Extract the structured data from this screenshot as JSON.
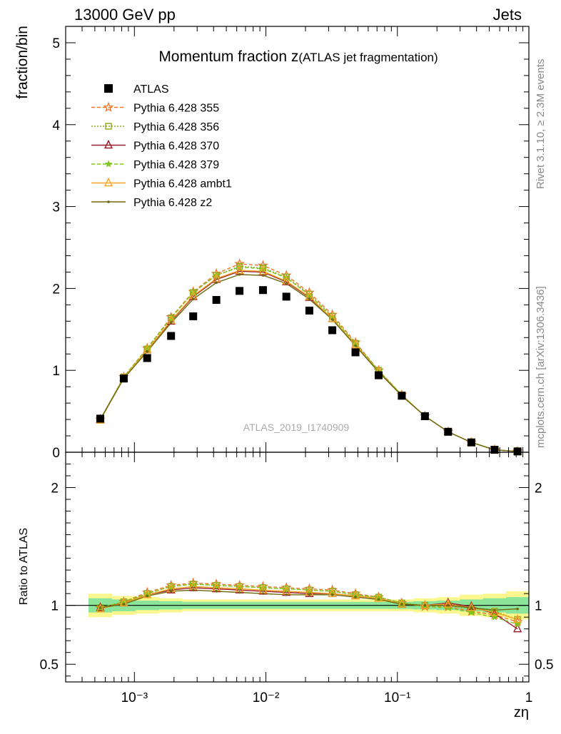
{
  "header": {
    "beam": "13000 GeV pp",
    "category": "Jets",
    "rivet": "Rivet 3.1.10, ≥ 2.3M events",
    "site": "mcplots.cern.ch [arXiv:1306.3436]",
    "analysis": "ATLAS_2019_I1740909"
  },
  "chart_data": [
    {
      "panel": "main",
      "type": "scatter",
      "title_main": "Momentum fraction z",
      "title_sub": "(ATLAS jet fragmentation)",
      "ylabel": "fraction/bin",
      "xscale": "log",
      "xlim": [
        0.0003,
        1
      ],
      "ylim": [
        0,
        5.2
      ],
      "y_ticks": [
        "0",
        "1",
        "2",
        "3",
        "4",
        "5"
      ],
      "legend_placement": "top-left",
      "x": [
        0.00055,
        0.00083,
        0.00125,
        0.0019,
        0.0028,
        0.0042,
        0.0063,
        0.0095,
        0.0143,
        0.0214,
        0.032,
        0.048,
        0.072,
        0.108,
        0.162,
        0.243,
        0.365,
        0.548,
        0.82
      ],
      "series": [
        {
          "name": "ATLAS",
          "color": "#000000",
          "marker": "square",
          "line": "none",
          "values": [
            0.41,
            0.9,
            1.15,
            1.42,
            1.66,
            1.86,
            1.97,
            1.98,
            1.9,
            1.73,
            1.49,
            1.22,
            0.94,
            0.69,
            0.44,
            0.25,
            0.12,
            0.03,
            0.01
          ]
        },
        {
          "name": "Pythia 6.428 355",
          "color": "#f4772e",
          "marker": "star-open",
          "line": "dashed",
          "values": [
            0.4,
            0.92,
            1.27,
            1.65,
            1.96,
            2.18,
            2.3,
            2.28,
            2.16,
            1.95,
            1.68,
            1.34,
            1.0,
            0.7,
            0.44,
            0.25,
            0.12,
            0.03,
            0.01
          ]
        },
        {
          "name": "Pythia 6.428 356",
          "color": "#8aac1a",
          "marker": "square-open",
          "line": "dotted",
          "values": [
            0.4,
            0.92,
            1.26,
            1.64,
            1.95,
            2.16,
            2.27,
            2.25,
            2.14,
            1.93,
            1.66,
            1.33,
            1.0,
            0.7,
            0.44,
            0.25,
            0.12,
            0.03,
            0.01
          ]
        },
        {
          "name": "Pythia 6.428 370",
          "color": "#9b1b2e",
          "marker": "triangle-open",
          "line": "solid",
          "values": [
            0.4,
            0.91,
            1.25,
            1.6,
            1.9,
            2.11,
            2.21,
            2.2,
            2.08,
            1.89,
            1.63,
            1.31,
            0.98,
            0.69,
            0.44,
            0.25,
            0.12,
            0.03,
            0.01
          ]
        },
        {
          "name": "Pythia 6.428 379",
          "color": "#7fc41d",
          "marker": "star",
          "line": "dashed",
          "values": [
            0.4,
            0.92,
            1.27,
            1.64,
            1.95,
            2.16,
            2.26,
            2.24,
            2.13,
            1.92,
            1.65,
            1.32,
            0.99,
            0.7,
            0.44,
            0.25,
            0.12,
            0.03,
            0.01
          ]
        },
        {
          "name": "Pythia 6.428 ambt1",
          "color": "#f5a623",
          "marker": "triangle-open",
          "line": "solid",
          "values": [
            0.39,
            0.91,
            1.25,
            1.61,
            1.91,
            2.12,
            2.22,
            2.21,
            2.09,
            1.9,
            1.63,
            1.31,
            0.98,
            0.69,
            0.44,
            0.25,
            0.12,
            0.03,
            0.01
          ]
        },
        {
          "name": "Pythia 6.428 z2",
          "color": "#6b6b10",
          "marker": "dot",
          "line": "solid",
          "values": [
            0.4,
            0.9,
            1.23,
            1.58,
            1.87,
            2.07,
            2.17,
            2.16,
            2.06,
            1.87,
            1.62,
            1.3,
            0.98,
            0.69,
            0.44,
            0.25,
            0.12,
            0.03,
            0.01
          ]
        }
      ]
    },
    {
      "panel": "ratio",
      "type": "line",
      "ylabel": "Ratio to ATLAS",
      "xlabel": "zη",
      "xscale": "log",
      "xlim": [
        0.0003,
        1
      ],
      "ylim": [
        0.35,
        2.3
      ],
      "y_ticks": [
        "0.5",
        "1",
        "2"
      ],
      "x_ticks": [
        "10⁻³",
        "10⁻²",
        "10⁻¹",
        "1"
      ],
      "band_yellow_halfwidth": [
        0.1,
        0.08,
        0.07,
        0.06,
        0.05,
        0.05,
        0.05,
        0.05,
        0.05,
        0.05,
        0.05,
        0.05,
        0.05,
        0.05,
        0.06,
        0.07,
        0.09,
        0.1,
        0.12
      ],
      "band_green_halfwidth": [
        0.06,
        0.05,
        0.04,
        0.035,
        0.03,
        0.03,
        0.03,
        0.03,
        0.03,
        0.03,
        0.03,
        0.03,
        0.03,
        0.03,
        0.035,
        0.04,
        0.05,
        0.06,
        0.07
      ],
      "series": [
        {
          "name": "Pythia 6.428 355",
          "values": [
            0.98,
            1.03,
            1.11,
            1.17,
            1.19,
            1.18,
            1.17,
            1.16,
            1.15,
            1.14,
            1.13,
            1.1,
            1.07,
            1.02,
            0.99,
            0.99,
            0.95,
            0.92,
            0.86
          ]
        },
        {
          "name": "Pythia 6.428 356",
          "values": [
            0.98,
            1.03,
            1.1,
            1.16,
            1.18,
            1.17,
            1.16,
            1.15,
            1.14,
            1.13,
            1.12,
            1.09,
            1.07,
            1.02,
            1.0,
            1.0,
            0.97,
            0.95,
            0.88
          ]
        },
        {
          "name": "Pythia 6.428 370",
          "values": [
            0.98,
            1.02,
            1.09,
            1.13,
            1.15,
            1.14,
            1.13,
            1.12,
            1.11,
            1.1,
            1.1,
            1.08,
            1.06,
            1.01,
            1.0,
            1.02,
            0.99,
            0.93,
            0.8
          ]
        },
        {
          "name": "Pythia 6.428 379",
          "values": [
            0.98,
            1.03,
            1.1,
            1.16,
            1.18,
            1.17,
            1.16,
            1.15,
            1.14,
            1.13,
            1.12,
            1.09,
            1.07,
            1.02,
            0.99,
            0.98,
            0.94,
            0.9,
            0.84
          ]
        },
        {
          "name": "Pythia 6.428 ambt1",
          "values": [
            0.97,
            1.02,
            1.09,
            1.14,
            1.16,
            1.15,
            1.14,
            1.13,
            1.12,
            1.11,
            1.1,
            1.08,
            1.06,
            1.01,
            1.0,
            1.01,
            0.98,
            0.94,
            0.88
          ]
        },
        {
          "name": "Pythia 6.428 z2",
          "values": [
            0.98,
            1.01,
            1.08,
            1.12,
            1.13,
            1.12,
            1.11,
            1.1,
            1.09,
            1.09,
            1.09,
            1.07,
            1.05,
            1.01,
            1.0,
            1.0,
            0.98,
            0.96,
            0.97
          ]
        }
      ]
    }
  ]
}
